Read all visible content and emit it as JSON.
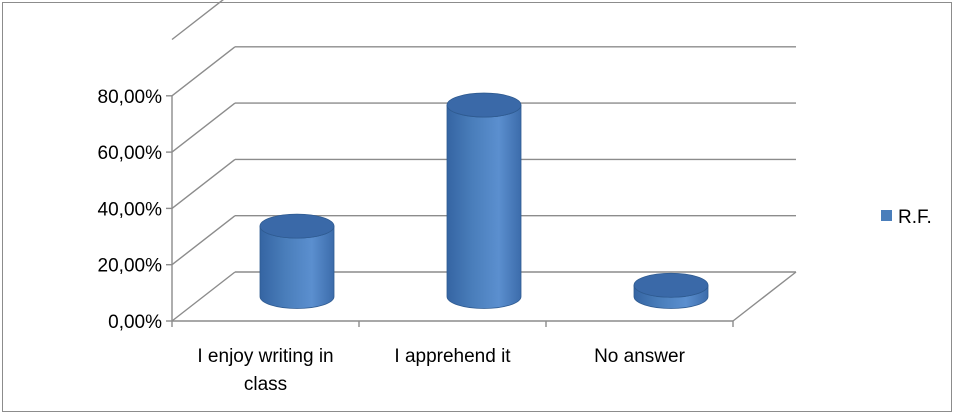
{
  "chart_data": {
    "type": "bar",
    "style": "3d-cylinder",
    "title": "",
    "xlabel": "",
    "ylabel": "",
    "categories": [
      "I enjoy writing in class",
      "I apprehend it",
      "No answer"
    ],
    "category_lines": [
      [
        "I enjoy writing in",
        "class"
      ],
      [
        "I apprehend it"
      ],
      [
        "No answer"
      ]
    ],
    "series": [
      {
        "name": "R.F.",
        "values": [
          25,
          68,
          4
        ]
      }
    ],
    "ylim": [
      0,
      80
    ],
    "yticks": [
      0,
      20,
      40,
      60,
      80
    ],
    "ytick_labels": [
      "0,00%",
      "20,00%",
      "40,00%",
      "60,00%",
      "80,00%"
    ],
    "grid": true,
    "legend": "right",
    "colors": {
      "bar": "#4a7ebb",
      "bar_top": "#3a69a8",
      "bar_edge": "#2f5b91",
      "grid": "#8c8c8c",
      "frame": "#8c8c8c"
    }
  }
}
